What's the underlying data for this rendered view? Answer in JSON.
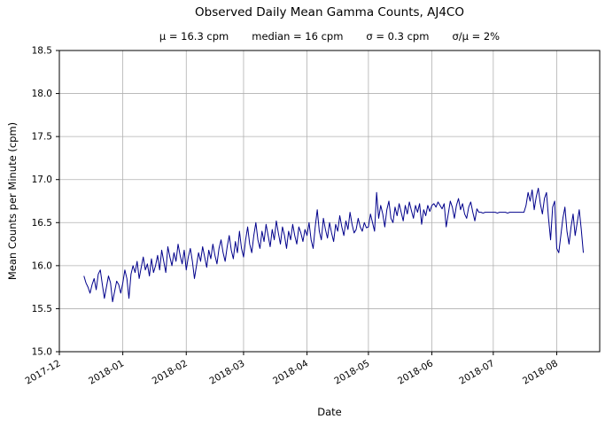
{
  "title": "Observed Daily Mean Gamma Counts, AJ4CO",
  "stats": {
    "mu": "μ = 16.3 cpm",
    "median": "median = 16 cpm",
    "sigma": "σ = 0.3 cpm",
    "ratio": "σ/μ = 2%"
  },
  "chart_data": {
    "type": "line",
    "title": "Observed Daily Mean Gamma Counts, AJ4CO",
    "subtitle": "μ = 16.3 cpm   median = 16 cpm   σ = 0.3 cpm   σ/μ = 2%",
    "xlabel": "Date",
    "ylabel": "Mean Counts per Minute (cpm)",
    "ylim": [
      15.0,
      18.5
    ],
    "ytick_step": 0.5,
    "grid": true,
    "legend": "none",
    "line_color": "#00008b",
    "grid_color": "#b0b0b0",
    "x_axis_range": [
      "2017-12-01",
      "2018-08-22"
    ],
    "x_tick_dates": [
      "2017-12-01",
      "2018-01-01",
      "2018-02-01",
      "2018-03-01",
      "2018-04-01",
      "2018-05-01",
      "2018-06-01",
      "2018-07-01",
      "2018-08-01"
    ],
    "x_tick_labels": [
      "2017-12",
      "2018-01",
      "2018-02",
      "2018-03",
      "2018-04",
      "2018-05",
      "2018-06",
      "2018-07",
      "2018-08"
    ],
    "series": [
      {
        "name": "daily_mean_gamma_counts_cpm",
        "start_date": "2017-12-13",
        "values": [
          15.88,
          15.8,
          15.75,
          15.68,
          15.78,
          15.85,
          15.72,
          15.9,
          15.95,
          15.78,
          15.62,
          15.75,
          15.88,
          15.8,
          15.58,
          15.7,
          15.82,
          15.78,
          15.68,
          15.8,
          15.95,
          15.85,
          15.62,
          15.9,
          16.0,
          15.92,
          16.05,
          15.85,
          15.98,
          16.1,
          15.95,
          16.02,
          15.88,
          16.08,
          15.92,
          16.0,
          16.12,
          15.95,
          16.18,
          16.05,
          15.92,
          16.22,
          16.1,
          16.0,
          16.15,
          16.05,
          16.25,
          16.12,
          16.02,
          16.18,
          15.95,
          16.1,
          16.2,
          16.05,
          15.85,
          16.0,
          16.15,
          16.05,
          16.22,
          16.1,
          15.98,
          16.18,
          16.08,
          16.25,
          16.12,
          16.02,
          16.2,
          16.3,
          16.15,
          16.05,
          16.22,
          16.35,
          16.18,
          16.08,
          16.28,
          16.15,
          16.4,
          16.2,
          16.1,
          16.3,
          16.45,
          16.25,
          16.15,
          16.35,
          16.5,
          16.3,
          16.2,
          16.4,
          16.28,
          16.48,
          16.35,
          16.22,
          16.42,
          16.3,
          16.52,
          16.38,
          16.25,
          16.45,
          16.35,
          16.2,
          16.4,
          16.3,
          16.48,
          16.35,
          16.25,
          16.45,
          16.38,
          16.28,
          16.42,
          16.35,
          16.5,
          16.3,
          16.2,
          16.45,
          16.65,
          16.4,
          16.3,
          16.55,
          16.42,
          16.32,
          16.5,
          16.38,
          16.28,
          16.48,
          16.4,
          16.58,
          16.45,
          16.35,
          16.52,
          16.42,
          16.62,
          16.48,
          16.38,
          16.42,
          16.55,
          16.45,
          16.4,
          16.5,
          16.44,
          16.45,
          16.6,
          16.5,
          16.4,
          16.85,
          16.55,
          16.7,
          16.6,
          16.45,
          16.65,
          16.75,
          16.55,
          16.5,
          16.68,
          16.58,
          16.72,
          16.62,
          16.52,
          16.7,
          16.6,
          16.74,
          16.64,
          16.55,
          16.7,
          16.62,
          16.72,
          16.48,
          16.65,
          16.58,
          16.7,
          16.63,
          16.7,
          16.72,
          16.68,
          16.74,
          16.7,
          16.66,
          16.72,
          16.45,
          16.6,
          16.75,
          16.68,
          16.55,
          16.7,
          16.78,
          16.65,
          16.72,
          16.6,
          16.55,
          16.68,
          16.74,
          16.62,
          16.52,
          16.66,
          16.62,
          16.62,
          16.61,
          16.62,
          16.62,
          16.62,
          16.62,
          16.62,
          16.62,
          16.61,
          16.62,
          16.62,
          16.62,
          16.62,
          16.61,
          16.62,
          16.62,
          16.62,
          16.62,
          16.62,
          16.62,
          16.62,
          16.62,
          16.7,
          16.85,
          16.75,
          16.88,
          16.65,
          16.8,
          16.9,
          16.72,
          16.6,
          16.78,
          16.85,
          16.55,
          16.3,
          16.68,
          16.75,
          16.2,
          16.15,
          16.35,
          16.55,
          16.68,
          16.4,
          16.25,
          16.45,
          16.6,
          16.35,
          16.5,
          16.65,
          16.42,
          16.15
        ]
      }
    ]
  }
}
